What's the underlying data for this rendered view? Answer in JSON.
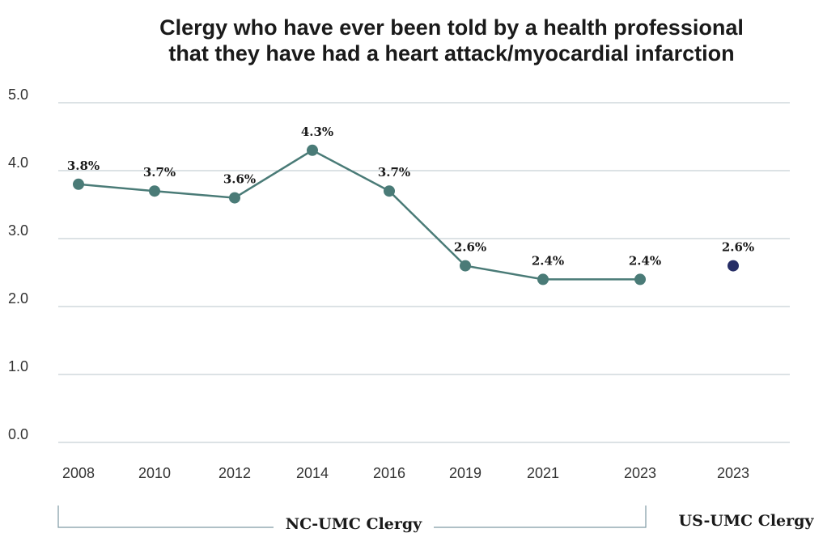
{
  "chart_data": {
    "type": "line",
    "title": "Clergy who have ever been told by a health professional",
    "subtitle": "that they have had a heart attack/myocardial infarction",
    "categories": [
      "2008",
      "2010",
      "2012",
      "2014",
      "2016",
      "2019",
      "2021",
      "2023",
      "2023"
    ],
    "series": [
      {
        "name": "NC-UMC Clergy",
        "color": "#4a7b77",
        "values": [
          3.8,
          3.7,
          3.6,
          4.3,
          3.7,
          2.6,
          2.4,
          2.4,
          null
        ],
        "value_labels": [
          "3.8%",
          "3.7%",
          "3.6%",
          "4.3%",
          "3.7%",
          "2.6%",
          "2.4%",
          "2.4%",
          null
        ]
      },
      {
        "name": "US-UMC Clergy",
        "color": "#262e66",
        "values": [
          null,
          null,
          null,
          null,
          null,
          null,
          null,
          null,
          2.6
        ],
        "value_labels": [
          null,
          null,
          null,
          null,
          null,
          null,
          null,
          null,
          "2.6%"
        ]
      }
    ],
    "ylim": [
      0,
      5
    ],
    "yticks": [
      {
        "value": 0,
        "label": "0.0"
      },
      {
        "value": 1,
        "label": "1.0"
      },
      {
        "value": 2,
        "label": "2.0"
      },
      {
        "value": 3,
        "label": "3.0"
      },
      {
        "value": 4,
        "label": "4.0"
      },
      {
        "value": 5,
        "label": "5.0"
      }
    ],
    "grid": true
  }
}
